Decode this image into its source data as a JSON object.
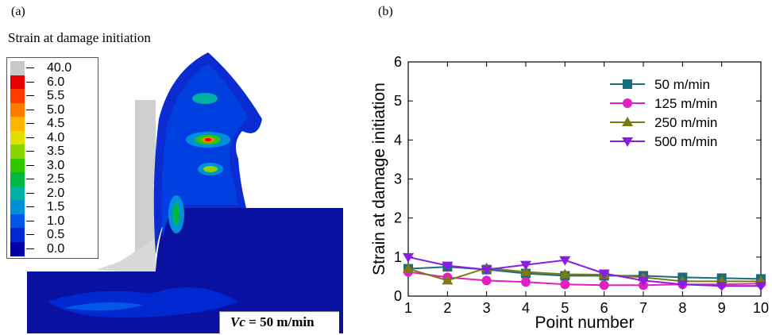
{
  "panel_a": {
    "label": "(a)",
    "colorbar_title": "Strain at damage initiation",
    "colorbar": [
      {
        "label": "40.0",
        "color": "#c8c8c8"
      },
      {
        "label": "6.0",
        "color": "#e80000"
      },
      {
        "label": "5.5",
        "color": "#ff3a00"
      },
      {
        "label": "5.0",
        "color": "#ff7a00"
      },
      {
        "label": "4.5",
        "color": "#ffb400"
      },
      {
        "label": "4.0",
        "color": "#e2df00"
      },
      {
        "label": "3.5",
        "color": "#8cd400"
      },
      {
        "label": "3.0",
        "color": "#2fc600"
      },
      {
        "label": "2.5",
        "color": "#00b840"
      },
      {
        "label": "2.0",
        "color": "#00b0a0"
      },
      {
        "label": "1.5",
        "color": "#0090d8"
      },
      {
        "label": "1.0",
        "color": "#0058e8"
      },
      {
        "label": "0.5",
        "color": "#0028d0"
      },
      {
        "label": "0.0",
        "color": "#0000a8"
      }
    ],
    "annotation_vc": "Vc",
    "annotation_value": " = 50 m/min"
  },
  "panel_b": {
    "label": "(b)"
  },
  "chart_data": {
    "type": "line",
    "xlabel": "Point number",
    "ylabel": "Strain at damage initiation",
    "xlim": [
      1,
      10
    ],
    "ylim": [
      0,
      6
    ],
    "x_ticks": [
      1,
      2,
      3,
      4,
      5,
      6,
      7,
      8,
      9,
      10
    ],
    "y_ticks": [
      0,
      1,
      2,
      3,
      4,
      5,
      6
    ],
    "grid": false,
    "legend_position": "top-right",
    "x": [
      1,
      2,
      3,
      4,
      5,
      6,
      7,
      8,
      9,
      10
    ],
    "series": [
      {
        "name": "50 m/min",
        "color": "#1a6e7a",
        "marker": "square",
        "values": [
          0.7,
          0.75,
          0.68,
          0.58,
          0.52,
          0.52,
          0.52,
          0.48,
          0.46,
          0.44
        ]
      },
      {
        "name": "125 m/min",
        "color": "#e020c0",
        "marker": "circle",
        "values": [
          0.62,
          0.48,
          0.4,
          0.36,
          0.3,
          0.28,
          0.28,
          0.3,
          0.3,
          0.32
        ]
      },
      {
        "name": "250 m/min",
        "color": "#7a7a10",
        "marker": "triangle-up",
        "values": [
          0.7,
          0.4,
          0.72,
          0.62,
          0.56,
          0.55,
          0.48,
          0.38,
          0.38,
          0.38
        ]
      },
      {
        "name": "500 m/min",
        "color": "#8a1ee0",
        "marker": "triangle-down",
        "values": [
          1.0,
          0.78,
          0.68,
          0.8,
          0.92,
          0.58,
          0.4,
          0.3,
          0.26,
          0.26
        ]
      }
    ]
  }
}
